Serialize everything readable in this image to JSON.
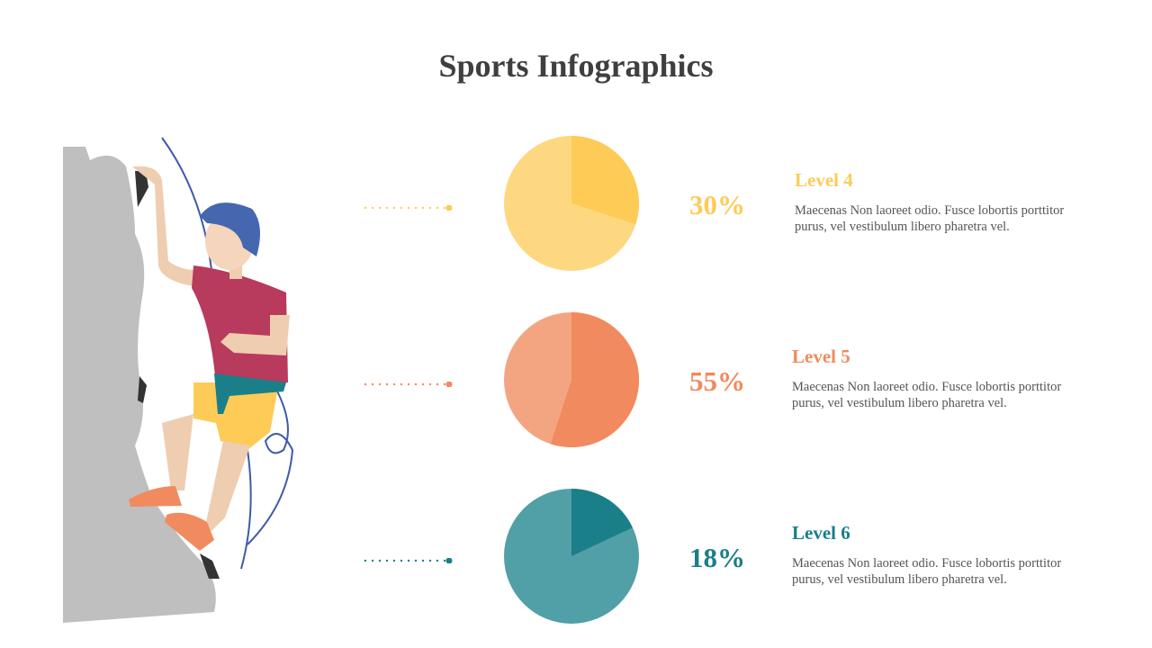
{
  "title": "Sports Infographics",
  "items": [
    {
      "level": "Level 4",
      "percent": "30%",
      "value": 30,
      "description": "Maecenas Non laoreet odio. Fusce lobortis porttitor purus, vel vestibulum libero pharetra vel.",
      "color": "#FECB57",
      "light": "#FED880"
    },
    {
      "level": "Level 5",
      "percent": "55%",
      "value": 55,
      "description": "Maecenas Non laoreet odio. Fusce lobortis porttitor purus, vel vestibulum libero pharetra vel.",
      "color": "#F18A5E",
      "light": "#F3A582"
    },
    {
      "level": "Level 6",
      "percent": "18%",
      "value": 18,
      "description": "Maecenas Non laoreet odio. Fusce lobortis porttitor purus, vel vestibulum libero pharetra vel.",
      "color": "#1A7F88",
      "light": "#519FA7"
    }
  ]
}
